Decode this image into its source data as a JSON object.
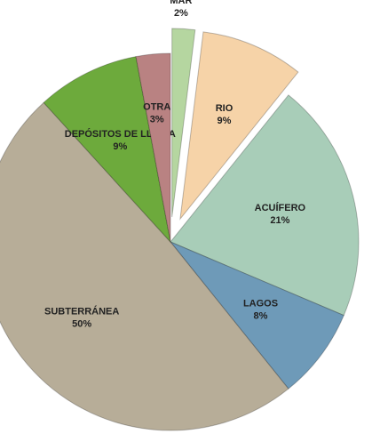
{
  "chart_data": {
    "type": "pie",
    "categories": [
      "MAR",
      "RIO",
      "ACUÍFERO",
      "LAGOS",
      "SUBTERRÁNEA",
      "DEPÓSITOS DE LLUVIA",
      "OTRA"
    ],
    "values": [
      2,
      9,
      21,
      8,
      50,
      9,
      3
    ],
    "value_labels": [
      "2%",
      "9%",
      "21%",
      "8%",
      "50%",
      "9%",
      "3%"
    ],
    "colors": [
      "#b5d6a0",
      "#f6d3a8",
      "#a8cdb8",
      "#6e9ab8",
      "#b7ad98",
      "#6daa3c",
      "#b98282"
    ],
    "explode": [
      true,
      true,
      false,
      false,
      false,
      false,
      false
    ]
  }
}
